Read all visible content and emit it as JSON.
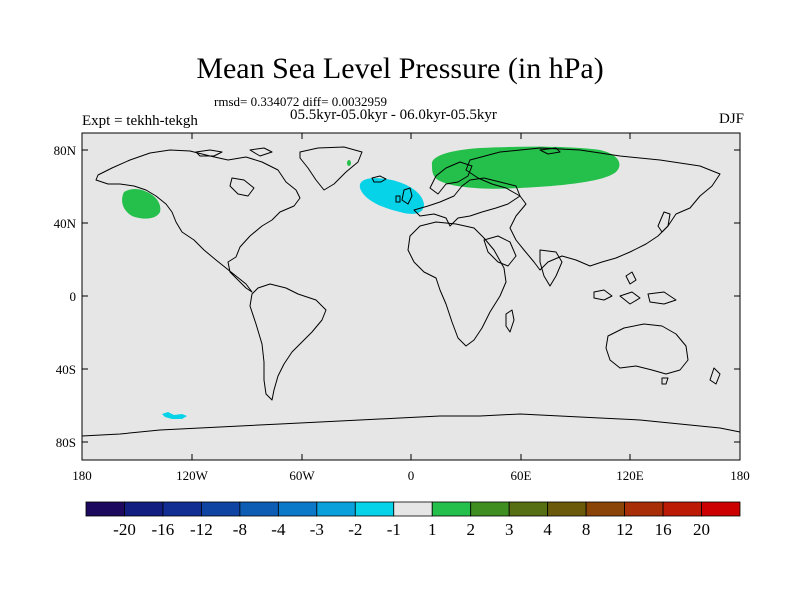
{
  "title": "Mean Sea Level Pressure (in hPa)",
  "stats": "rmsd= 0.334072 diff= 0.0032959",
  "period": "05.5kyr-05.0kyr - 06.0kyr-05.5kyr",
  "experiment": "Expt = tekhh-tekgh",
  "season": "DJF",
  "lat_labels": [
    "80N",
    "40N",
    "0",
    "40S",
    "80S"
  ],
  "lon_labels": [
    "180",
    "120W",
    "60W",
    "0",
    "60E",
    "120E",
    "180"
  ],
  "colorbar": {
    "labels": [
      "-20",
      "-16",
      "-12",
      "-8",
      "-4",
      "-3",
      "-2",
      "-1",
      "1",
      "2",
      "3",
      "4",
      "8",
      "12",
      "16",
      "20"
    ],
    "colors": [
      "#1d0a5e",
      "#121e80",
      "#122e93",
      "#0f44a3",
      "#0d5db5",
      "#0c79c8",
      "#0aa0dc",
      "#06d2e8",
      "#e6e6e6",
      "#25bf4b",
      "#3f8e22",
      "#566f12",
      "#6a5a0a",
      "#8a4408",
      "#a72e07",
      "#bd1a05",
      "#cc0000"
    ]
  },
  "map": {
    "background_color": "#e6e6e6",
    "anomaly_regions": [
      {
        "name": "NE Pacific high",
        "value_class": "1 to 2",
        "color": "#25bf4b"
      },
      {
        "name": "N Atlantic low",
        "value_class": "-2 to -1",
        "color": "#06d2e8"
      },
      {
        "name": "Eurasia high",
        "value_class": "1 to 2",
        "color": "#25bf4b"
      },
      {
        "name": "Greenland spot",
        "value_class": "1 to 2",
        "color": "#25bf4b"
      },
      {
        "name": "South Pacific low",
        "value_class": "-2 to -1",
        "color": "#06d2e8"
      }
    ]
  }
}
